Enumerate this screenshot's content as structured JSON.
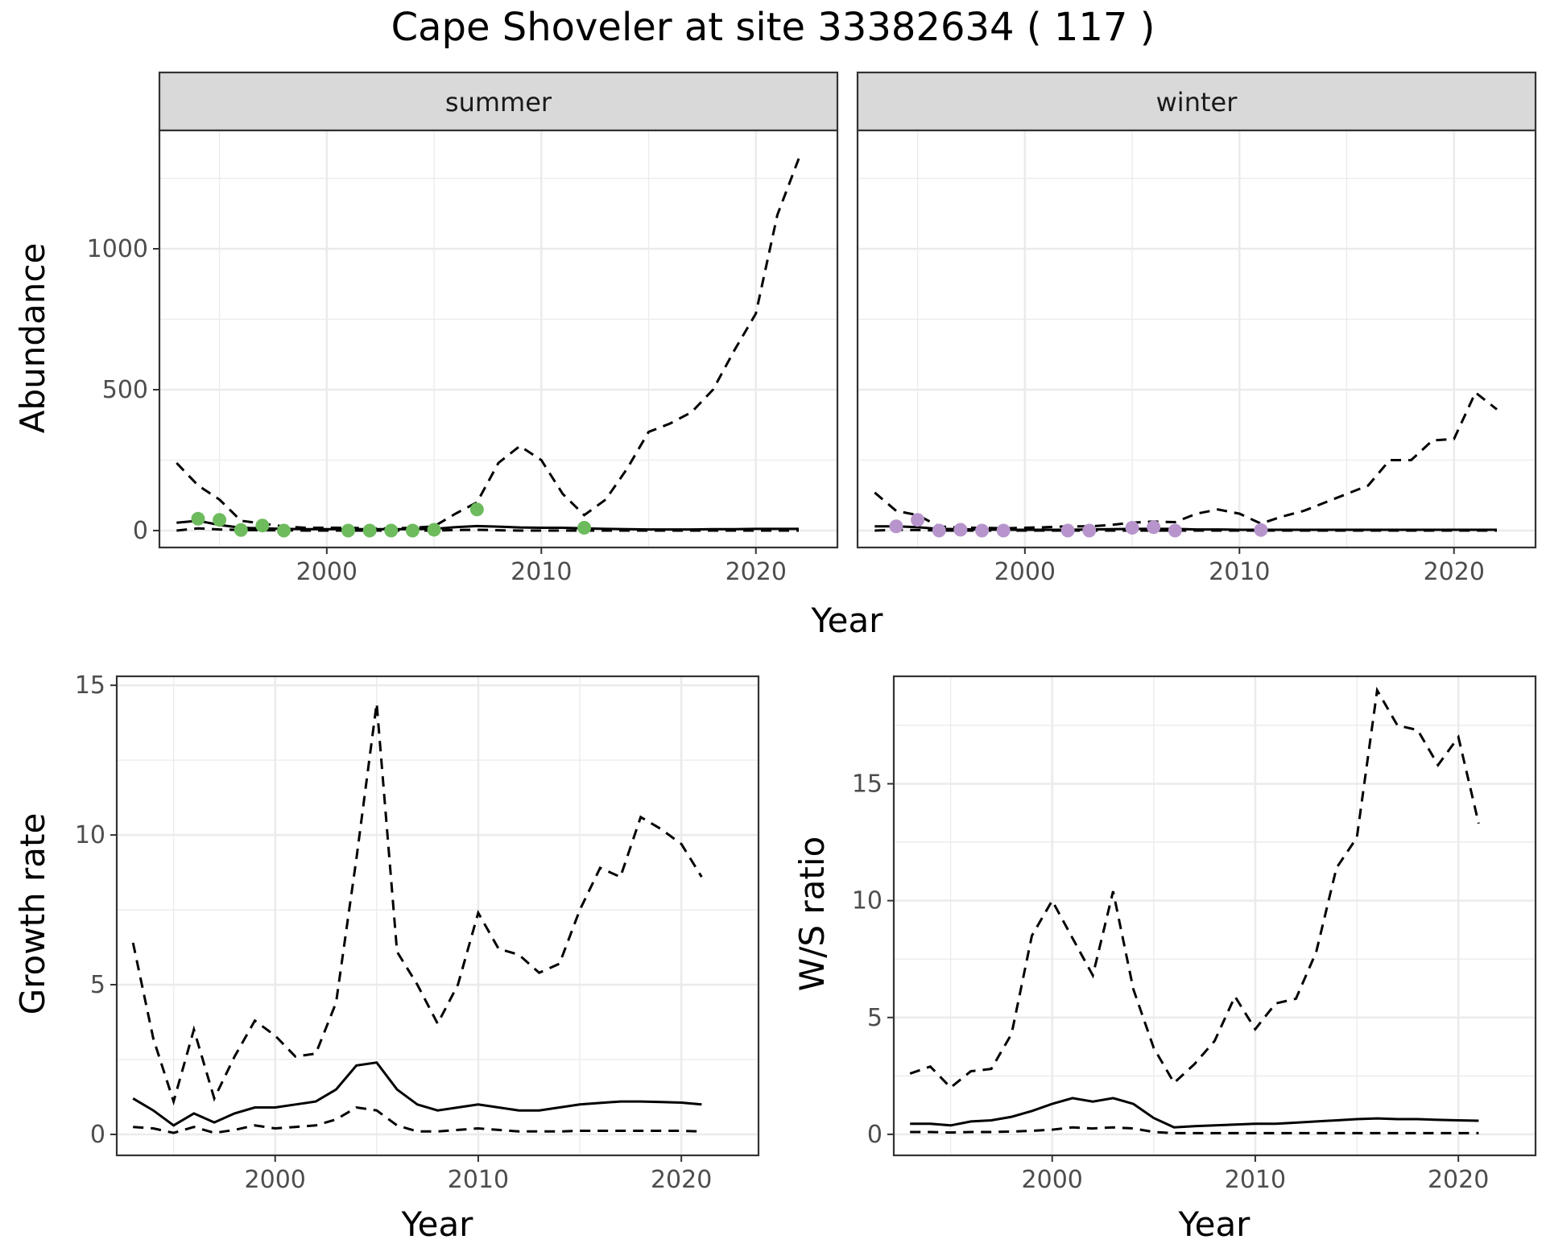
{
  "title": "Cape Shoveler at site 33382634 ( 117 )",
  "chart_data": [
    {
      "type": "line",
      "id": "abundance-summer",
      "facet": "summer",
      "xlabel": "Year",
      "ylabel": "Abundance",
      "xlim": [
        1992.2,
        2023.8
      ],
      "ylim": [
        -60,
        1420
      ],
      "x_ticks": [
        2000,
        2010,
        2020
      ],
      "y_ticks": [
        0,
        500,
        1000
      ],
      "point_color": "#6dbb5d",
      "series": [
        {
          "style": "solid",
          "x": [
            1993,
            1994,
            1995,
            1996,
            1997,
            1998,
            1999,
            2000,
            2001,
            2002,
            2003,
            2004,
            2005,
            2006,
            2007,
            2008,
            2009,
            2010,
            2011,
            2012,
            2013,
            2014,
            2015,
            2016,
            2017,
            2018,
            2019,
            2020,
            2021,
            2022
          ],
          "values": [
            28,
            35,
            20,
            10,
            8,
            6,
            5,
            5,
            5,
            5,
            5,
            5,
            6,
            12,
            16,
            14,
            11,
            10,
            10,
            8,
            6,
            5,
            4,
            4,
            4,
            5,
            5,
            6,
            6,
            6
          ]
        },
        {
          "style": "dashed",
          "x": [
            1993,
            1994,
            1995,
            1996,
            1997,
            1998,
            1999,
            2000,
            2001,
            2002,
            2003,
            2004,
            2005,
            2006,
            2007,
            2008,
            2009,
            2010,
            2011,
            2012,
            2013,
            2014,
            2015,
            2016,
            2017,
            2018,
            2019,
            2020,
            2021,
            2022
          ],
          "values": [
            240,
            160,
            110,
            35,
            25,
            15,
            10,
            10,
            10,
            8,
            8,
            10,
            15,
            60,
            100,
            240,
            300,
            250,
            130,
            55,
            110,
            220,
            350,
            380,
            420,
            500,
            640,
            770,
            1120,
            1320
          ]
        },
        {
          "style": "dashed",
          "x": [
            1993,
            1994,
            1995,
            1996,
            1997,
            1998,
            1999,
            2000,
            2001,
            2002,
            2003,
            2004,
            2005,
            2006,
            2007,
            2008,
            2009,
            2010,
            2011,
            2012,
            2013,
            2014,
            2015,
            2016,
            2017,
            2018,
            2019,
            2020,
            2021,
            2022
          ],
          "values": [
            0,
            8,
            4,
            2,
            1,
            1,
            0,
            0,
            0,
            0,
            0,
            0,
            0,
            2,
            3,
            1,
            0,
            0,
            0,
            0,
            0,
            0,
            0,
            0,
            0,
            0,
            0,
            0,
            0,
            0
          ]
        },
        {
          "style": "points",
          "x": [
            1994,
            1995,
            1996,
            1997,
            1998,
            2001,
            2002,
            2003,
            2004,
            2005,
            2007,
            2012
          ],
          "values": [
            42,
            38,
            2,
            18,
            0,
            0,
            0,
            0,
            0,
            3,
            75,
            10
          ]
        }
      ]
    },
    {
      "type": "line",
      "id": "abundance-winter",
      "facet": "winter",
      "xlabel": "Year",
      "ylabel": "Abundance",
      "xlim": [
        1992.2,
        2023.8
      ],
      "ylim": [
        -60,
        1420
      ],
      "x_ticks": [
        2000,
        2010,
        2020
      ],
      "y_ticks": [
        0,
        500,
        1000
      ],
      "point_color": "#b795cc",
      "series": [
        {
          "style": "solid",
          "x": [
            1993,
            1994,
            1995,
            1996,
            1997,
            1998,
            1999,
            2000,
            2001,
            2002,
            2003,
            2004,
            2005,
            2006,
            2007,
            2008,
            2009,
            2010,
            2011,
            2012,
            2013,
            2014,
            2015,
            2016,
            2017,
            2018,
            2019,
            2020,
            2021,
            2022
          ],
          "values": [
            15,
            15,
            12,
            6,
            5,
            4,
            3,
            3,
            3,
            3,
            4,
            5,
            6,
            6,
            6,
            4,
            4,
            3,
            3,
            3,
            3,
            3,
            3,
            3,
            3,
            3,
            3,
            3,
            3,
            3
          ]
        },
        {
          "style": "dashed",
          "x": [
            1993,
            1994,
            1995,
            1996,
            1997,
            1998,
            1999,
            2000,
            2001,
            2002,
            2003,
            2004,
            2005,
            2006,
            2007,
            2008,
            2009,
            2010,
            2011,
            2012,
            2013,
            2014,
            2015,
            2016,
            2017,
            2018,
            2019,
            2020,
            2021,
            2022
          ],
          "values": [
            135,
            70,
            55,
            15,
            10,
            10,
            8,
            10,
            12,
            15,
            15,
            20,
            28,
            32,
            30,
            60,
            75,
            60,
            25,
            50,
            70,
            100,
            130,
            160,
            250,
            250,
            320,
            325,
            490,
            430
          ]
        },
        {
          "style": "dashed",
          "x": [
            1993,
            1994,
            1995,
            1996,
            1997,
            1998,
            1999,
            2000,
            2001,
            2002,
            2003,
            2004,
            2005,
            2006,
            2007,
            2008,
            2009,
            2010,
            2011,
            2012,
            2013,
            2014,
            2015,
            2016,
            2017,
            2018,
            2019,
            2020,
            2021,
            2022
          ],
          "values": [
            0,
            3,
            2,
            0,
            0,
            0,
            0,
            0,
            0,
            0,
            0,
            0,
            0,
            0,
            0,
            0,
            0,
            0,
            0,
            0,
            0,
            0,
            0,
            0,
            0,
            0,
            0,
            0,
            0,
            0
          ]
        },
        {
          "style": "points",
          "x": [
            1994,
            1995,
            1996,
            1997,
            1998,
            1999,
            2002,
            2003,
            2005,
            2006,
            2007,
            2011
          ],
          "values": [
            15,
            38,
            0,
            3,
            0,
            0,
            0,
            0,
            10,
            12,
            0,
            2
          ]
        }
      ]
    },
    {
      "type": "line",
      "id": "growth-rate",
      "xlabel": "Year",
      "ylabel": "Growth rate",
      "xlim": [
        1992.2,
        2023.8
      ],
      "ylim": [
        -0.7,
        15.3
      ],
      "x_ticks": [
        2000,
        2010,
        2020
      ],
      "y_ticks": [
        0,
        5,
        10,
        15
      ],
      "series": [
        {
          "style": "solid",
          "x": [
            1993,
            1994,
            1995,
            1996,
            1997,
            1998,
            1999,
            2000,
            2001,
            2002,
            2003,
            2004,
            2005,
            2006,
            2007,
            2008,
            2009,
            2010,
            2011,
            2012,
            2013,
            2014,
            2015,
            2016,
            2017,
            2018,
            2019,
            2020,
            2021
          ],
          "values": [
            1.2,
            0.8,
            0.3,
            0.7,
            0.4,
            0.7,
            0.9,
            0.9,
            1.0,
            1.1,
            1.5,
            2.3,
            2.4,
            1.5,
            1.0,
            0.8,
            0.9,
            1.0,
            0.9,
            0.8,
            0.8,
            0.9,
            1.0,
            1.05,
            1.1,
            1.1,
            1.08,
            1.06,
            1.0
          ]
        },
        {
          "style": "dashed",
          "x": [
            1993,
            1994,
            1995,
            1996,
            1997,
            1998,
            1999,
            2000,
            2001,
            2002,
            2003,
            2004,
            2005,
            2006,
            2007,
            2008,
            2009,
            2010,
            2011,
            2012,
            2013,
            2014,
            2015,
            2016,
            2017,
            2018,
            2019,
            2020,
            2021
          ],
          "values": [
            6.4,
            3.2,
            1.1,
            3.5,
            1.2,
            2.6,
            3.8,
            3.3,
            2.6,
            2.7,
            4.4,
            9.2,
            14.4,
            6.1,
            5.0,
            3.7,
            5.0,
            7.4,
            6.2,
            6.0,
            5.4,
            5.7,
            7.5,
            8.9,
            8.6,
            10.6,
            10.2,
            9.7,
            8.6
          ]
        },
        {
          "style": "dashed",
          "x": [
            1993,
            1994,
            1995,
            1996,
            1997,
            1998,
            1999,
            2000,
            2001,
            2002,
            2003,
            2004,
            2005,
            2006,
            2007,
            2008,
            2009,
            2010,
            2011,
            2012,
            2013,
            2014,
            2015,
            2016,
            2017,
            2018,
            2019,
            2020,
            2021
          ],
          "values": [
            0.25,
            0.2,
            0.05,
            0.25,
            0.05,
            0.15,
            0.3,
            0.2,
            0.25,
            0.3,
            0.5,
            0.9,
            0.8,
            0.3,
            0.1,
            0.1,
            0.15,
            0.2,
            0.15,
            0.1,
            0.1,
            0.1,
            0.12,
            0.12,
            0.12,
            0.12,
            0.12,
            0.12,
            0.1
          ]
        }
      ]
    },
    {
      "type": "line",
      "id": "ws-ratio",
      "xlabel": "Year",
      "ylabel": "W/S ratio",
      "xlim": [
        1992.2,
        2023.8
      ],
      "ylim": [
        -0.9,
        19.6
      ],
      "x_ticks": [
        2000,
        2010,
        2020
      ],
      "y_ticks": [
        0,
        5,
        10,
        15
      ],
      "series": [
        {
          "style": "solid",
          "x": [
            1993,
            1994,
            1995,
            1996,
            1997,
            1998,
            1999,
            2000,
            2001,
            2002,
            2003,
            2004,
            2005,
            2006,
            2007,
            2008,
            2009,
            2010,
            2011,
            2012,
            2013,
            2014,
            2015,
            2016,
            2017,
            2018,
            2019,
            2020,
            2021
          ],
          "values": [
            0.45,
            0.45,
            0.38,
            0.55,
            0.6,
            0.75,
            1.0,
            1.3,
            1.55,
            1.4,
            1.55,
            1.3,
            0.7,
            0.3,
            0.35,
            0.38,
            0.42,
            0.45,
            0.45,
            0.5,
            0.55,
            0.6,
            0.65,
            0.68,
            0.65,
            0.65,
            0.62,
            0.6,
            0.58
          ]
        },
        {
          "style": "dashed",
          "x": [
            1993,
            1994,
            1995,
            1996,
            1997,
            1998,
            1999,
            2000,
            2001,
            2002,
            2003,
            2004,
            2005,
            2006,
            2007,
            2008,
            2009,
            2010,
            2011,
            2012,
            2013,
            2014,
            2015,
            2016,
            2017,
            2018,
            2019,
            2020,
            2021
          ],
          "values": [
            2.6,
            2.9,
            2.0,
            2.7,
            2.8,
            4.3,
            8.5,
            10.0,
            8.4,
            6.8,
            10.4,
            6.2,
            3.7,
            2.2,
            3.0,
            4.0,
            5.9,
            4.5,
            5.6,
            5.8,
            7.8,
            11.4,
            12.7,
            19.0,
            17.5,
            17.3,
            15.8,
            17.0,
            13.3
          ]
        },
        {
          "style": "dashed",
          "x": [
            1993,
            1994,
            1995,
            1996,
            1997,
            1998,
            1999,
            2000,
            2001,
            2002,
            2003,
            2004,
            2005,
            2006,
            2007,
            2008,
            2009,
            2010,
            2011,
            2012,
            2013,
            2014,
            2015,
            2016,
            2017,
            2018,
            2019,
            2020,
            2021
          ],
          "values": [
            0.1,
            0.1,
            0.08,
            0.1,
            0.1,
            0.12,
            0.15,
            0.2,
            0.3,
            0.25,
            0.3,
            0.25,
            0.1,
            0.05,
            0.05,
            0.05,
            0.05,
            0.05,
            0.05,
            0.05,
            0.05,
            0.05,
            0.05,
            0.05,
            0.05,
            0.05,
            0.05,
            0.05,
            0.05
          ]
        }
      ]
    }
  ],
  "facet_labels": {
    "summer": "summer",
    "winter": "winter"
  },
  "shared_xlabel": "Year"
}
